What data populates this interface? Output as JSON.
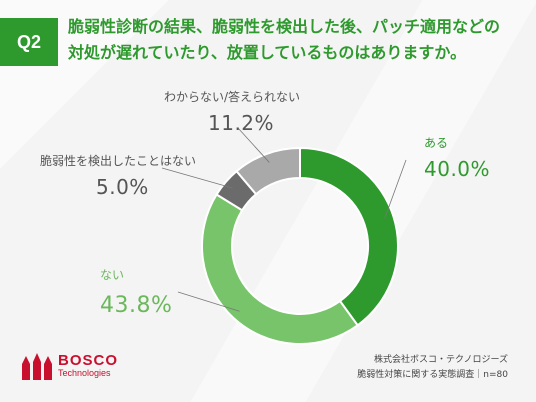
{
  "question": {
    "number": "Q2",
    "line1": "脆弱性診断の結果、脆弱性を検出した後、パッチ適用などの",
    "line2": "対処が遅れていたり、放置しているものはありますか。"
  },
  "chart_data": {
    "type": "pie",
    "donut": true,
    "categories": [
      "ある",
      "ない",
      "脆弱性を検出したことはない",
      "わからない/答えられない"
    ],
    "values": [
      40.0,
      43.8,
      5.0,
      11.2
    ],
    "value_labels": [
      "40.0%",
      "43.8%",
      "5.0%",
      "11.2%"
    ],
    "colors": [
      "#2e9a2e",
      "#78c46a",
      "#6b6b6b",
      "#a9a9a9"
    ],
    "start": "12 o'clock",
    "direction": "clockwise"
  },
  "colors": {
    "accent": "#2e9a2e",
    "light_green": "#78c46a",
    "brand_red": "#c8102e"
  },
  "logo": {
    "name": "BOSCO",
    "sub": "Technologies"
  },
  "footer": {
    "line1": "株式会社ボスコ・テクノロジーズ",
    "line2": "脆弱性対策に関する実態調査｜n=80"
  }
}
